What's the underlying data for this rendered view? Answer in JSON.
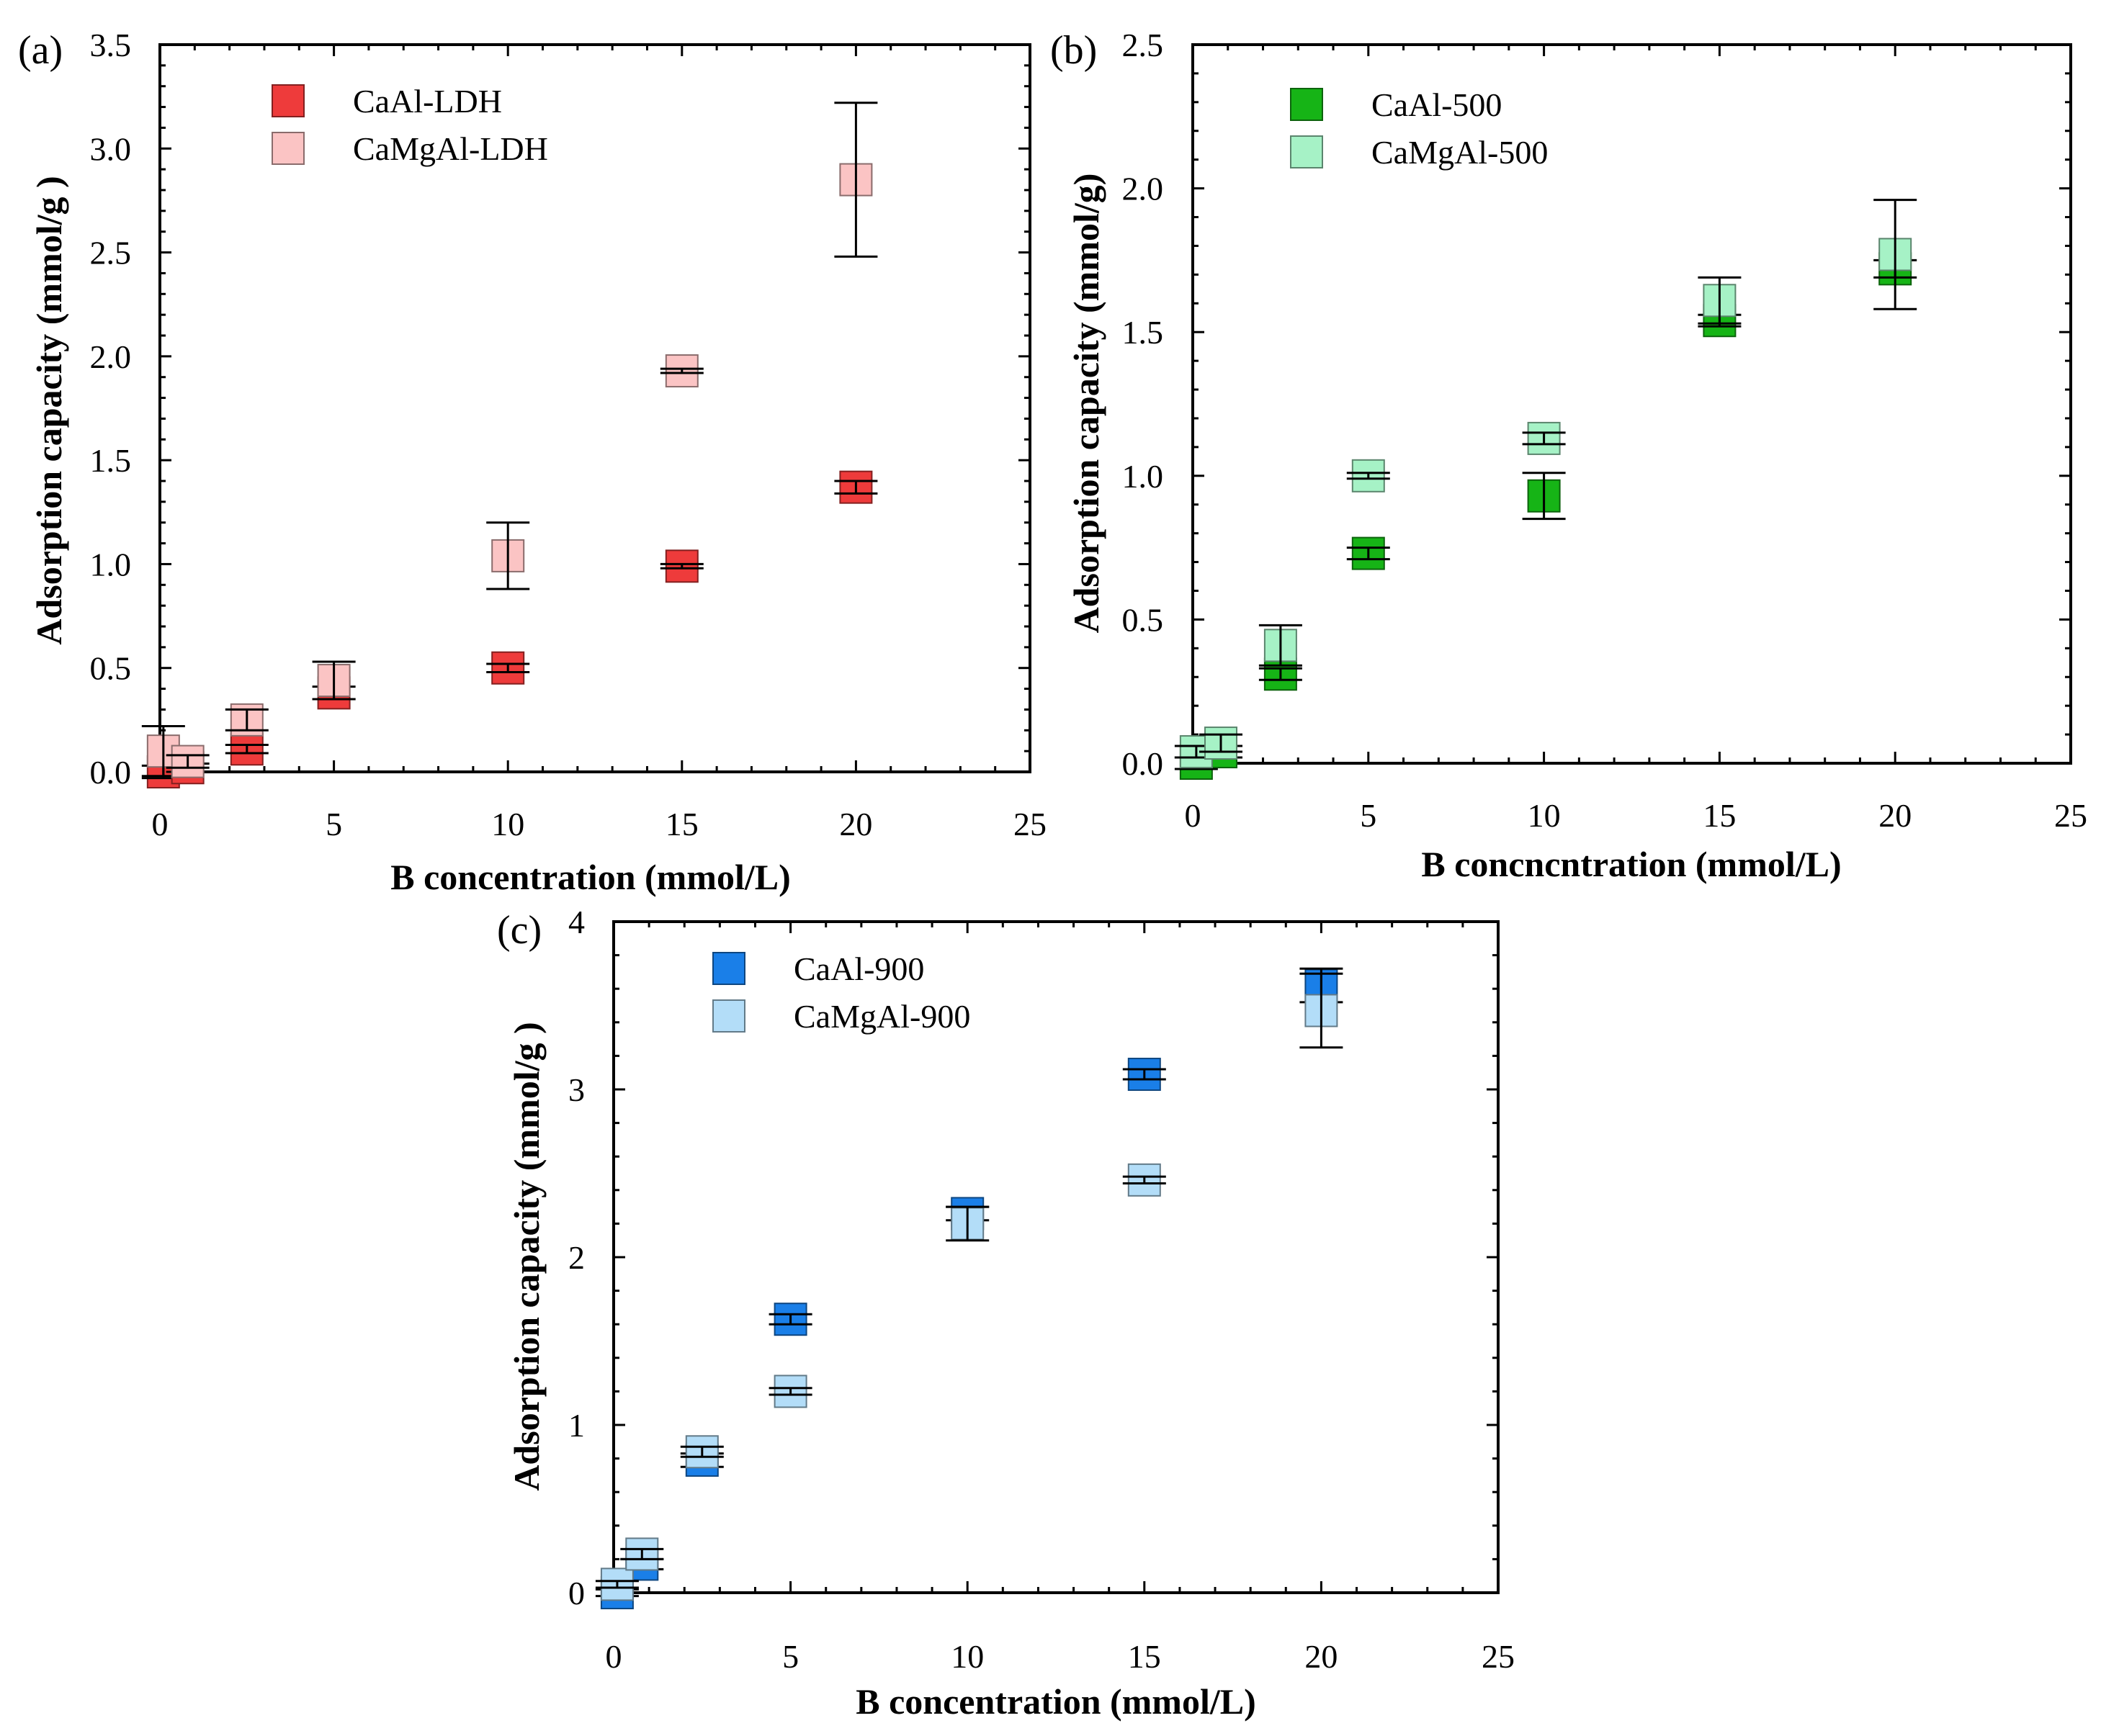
{
  "chart_data": [
    {
      "type": "scatter",
      "panel_label": "(a)",
      "xlabel": "B concentration (mmol/L)",
      "ylabel": "Adsorption capacity (mmol/g )",
      "xlim": [
        0,
        25
      ],
      "ylim": [
        0,
        3.5
      ],
      "xticks": [
        "0",
        "5",
        "10",
        "15",
        "20",
        "25"
      ],
      "yticks": [
        "0.0",
        "0.5",
        "1.0",
        "1.5",
        "2.0",
        "2.5",
        "3.0",
        "3.5"
      ],
      "legend_position": "top-left",
      "series": [
        {
          "name": "CaAl-LDH",
          "color": "#ee3b3b",
          "x": [
            0.1,
            0.8,
            2.5,
            5,
            10,
            15,
            20
          ],
          "y": [
            0.0,
            0.02,
            0.11,
            0.38,
            0.5,
            0.99,
            1.37
          ],
          "err": [
            0.03,
            0.02,
            0.02,
            0.03,
            0.02,
            0.01,
            0.03
          ]
        },
        {
          "name": "CaMgAl-LDH",
          "color": "#fbc4c4",
          "x": [
            0.1,
            0.8,
            2.5,
            5,
            10,
            15,
            20
          ],
          "y": [
            0.1,
            0.05,
            0.25,
            0.44,
            1.04,
            1.93,
            2.85
          ],
          "err": [
            0.12,
            0.03,
            0.05,
            0.09,
            0.16,
            0.01,
            0.37
          ]
        }
      ]
    },
    {
      "type": "scatter",
      "panel_label": "(b)",
      "xlabel": "B concncntration (mmol/L)",
      "ylabel": "Adsorption capacity (mmol/g)",
      "xlim": [
        0,
        25
      ],
      "ylim": [
        0,
        2.5
      ],
      "xticks": [
        "0",
        "5",
        "10",
        "15",
        "20",
        "25"
      ],
      "yticks": [
        "0.0",
        "0.5",
        "1.0",
        "1.5",
        "2.0",
        "2.5"
      ],
      "legend_position": "top-left",
      "series": [
        {
          "name": "CaAl-500",
          "color": "#16b416",
          "x": [
            0.1,
            0.8,
            2.5,
            5,
            10,
            15,
            20
          ],
          "y": [
            0.0,
            0.04,
            0.31,
            0.73,
            0.93,
            1.54,
            1.72
          ],
          "err": [
            0.02,
            0.02,
            0.02,
            0.02,
            0.08,
            0.02,
            0.03
          ]
        },
        {
          "name": "CaMgAl-500",
          "color": "#a6f2c6",
          "x": [
            0.1,
            0.8,
            2.5,
            5,
            10,
            15,
            20
          ],
          "y": [
            0.04,
            0.07,
            0.41,
            1.0,
            1.13,
            1.61,
            1.77
          ],
          "err": [
            0.02,
            0.03,
            0.07,
            0.01,
            0.02,
            0.08,
            0.19
          ]
        }
      ]
    },
    {
      "type": "scatter",
      "panel_label": "(c)",
      "xlabel": "B concentration (mmol/L)",
      "ylabel": "Adsorption capacity (mmol/g )",
      "xlim": [
        0,
        25
      ],
      "ylim": [
        0,
        4
      ],
      "xticks": [
        "0",
        "5",
        "10",
        "15",
        "20",
        "25"
      ],
      "yticks": [
        "0",
        "1",
        "2",
        "3",
        "4"
      ],
      "legend_position": "top-left",
      "series": [
        {
          "name": "CaAl-900",
          "color": "#1a7fe8",
          "x": [
            0.1,
            0.8,
            2.5,
            5,
            10,
            15,
            20
          ],
          "y": [
            0.0,
            0.17,
            0.79,
            1.63,
            2.26,
            3.09,
            3.62
          ],
          "err": [
            0.02,
            0.03,
            0.04,
            0.03,
            0.04,
            0.03,
            0.1
          ]
        },
        {
          "name": "CaMgAl-900",
          "color": "#b3ddf8",
          "x": [
            0.1,
            0.8,
            2.5,
            5,
            10,
            15,
            20
          ],
          "y": [
            0.05,
            0.23,
            0.84,
            1.2,
            2.2,
            2.46,
            3.47
          ],
          "err": [
            0.02,
            0.03,
            0.03,
            0.02,
            0.1,
            0.02,
            0.22
          ]
        }
      ]
    }
  ]
}
